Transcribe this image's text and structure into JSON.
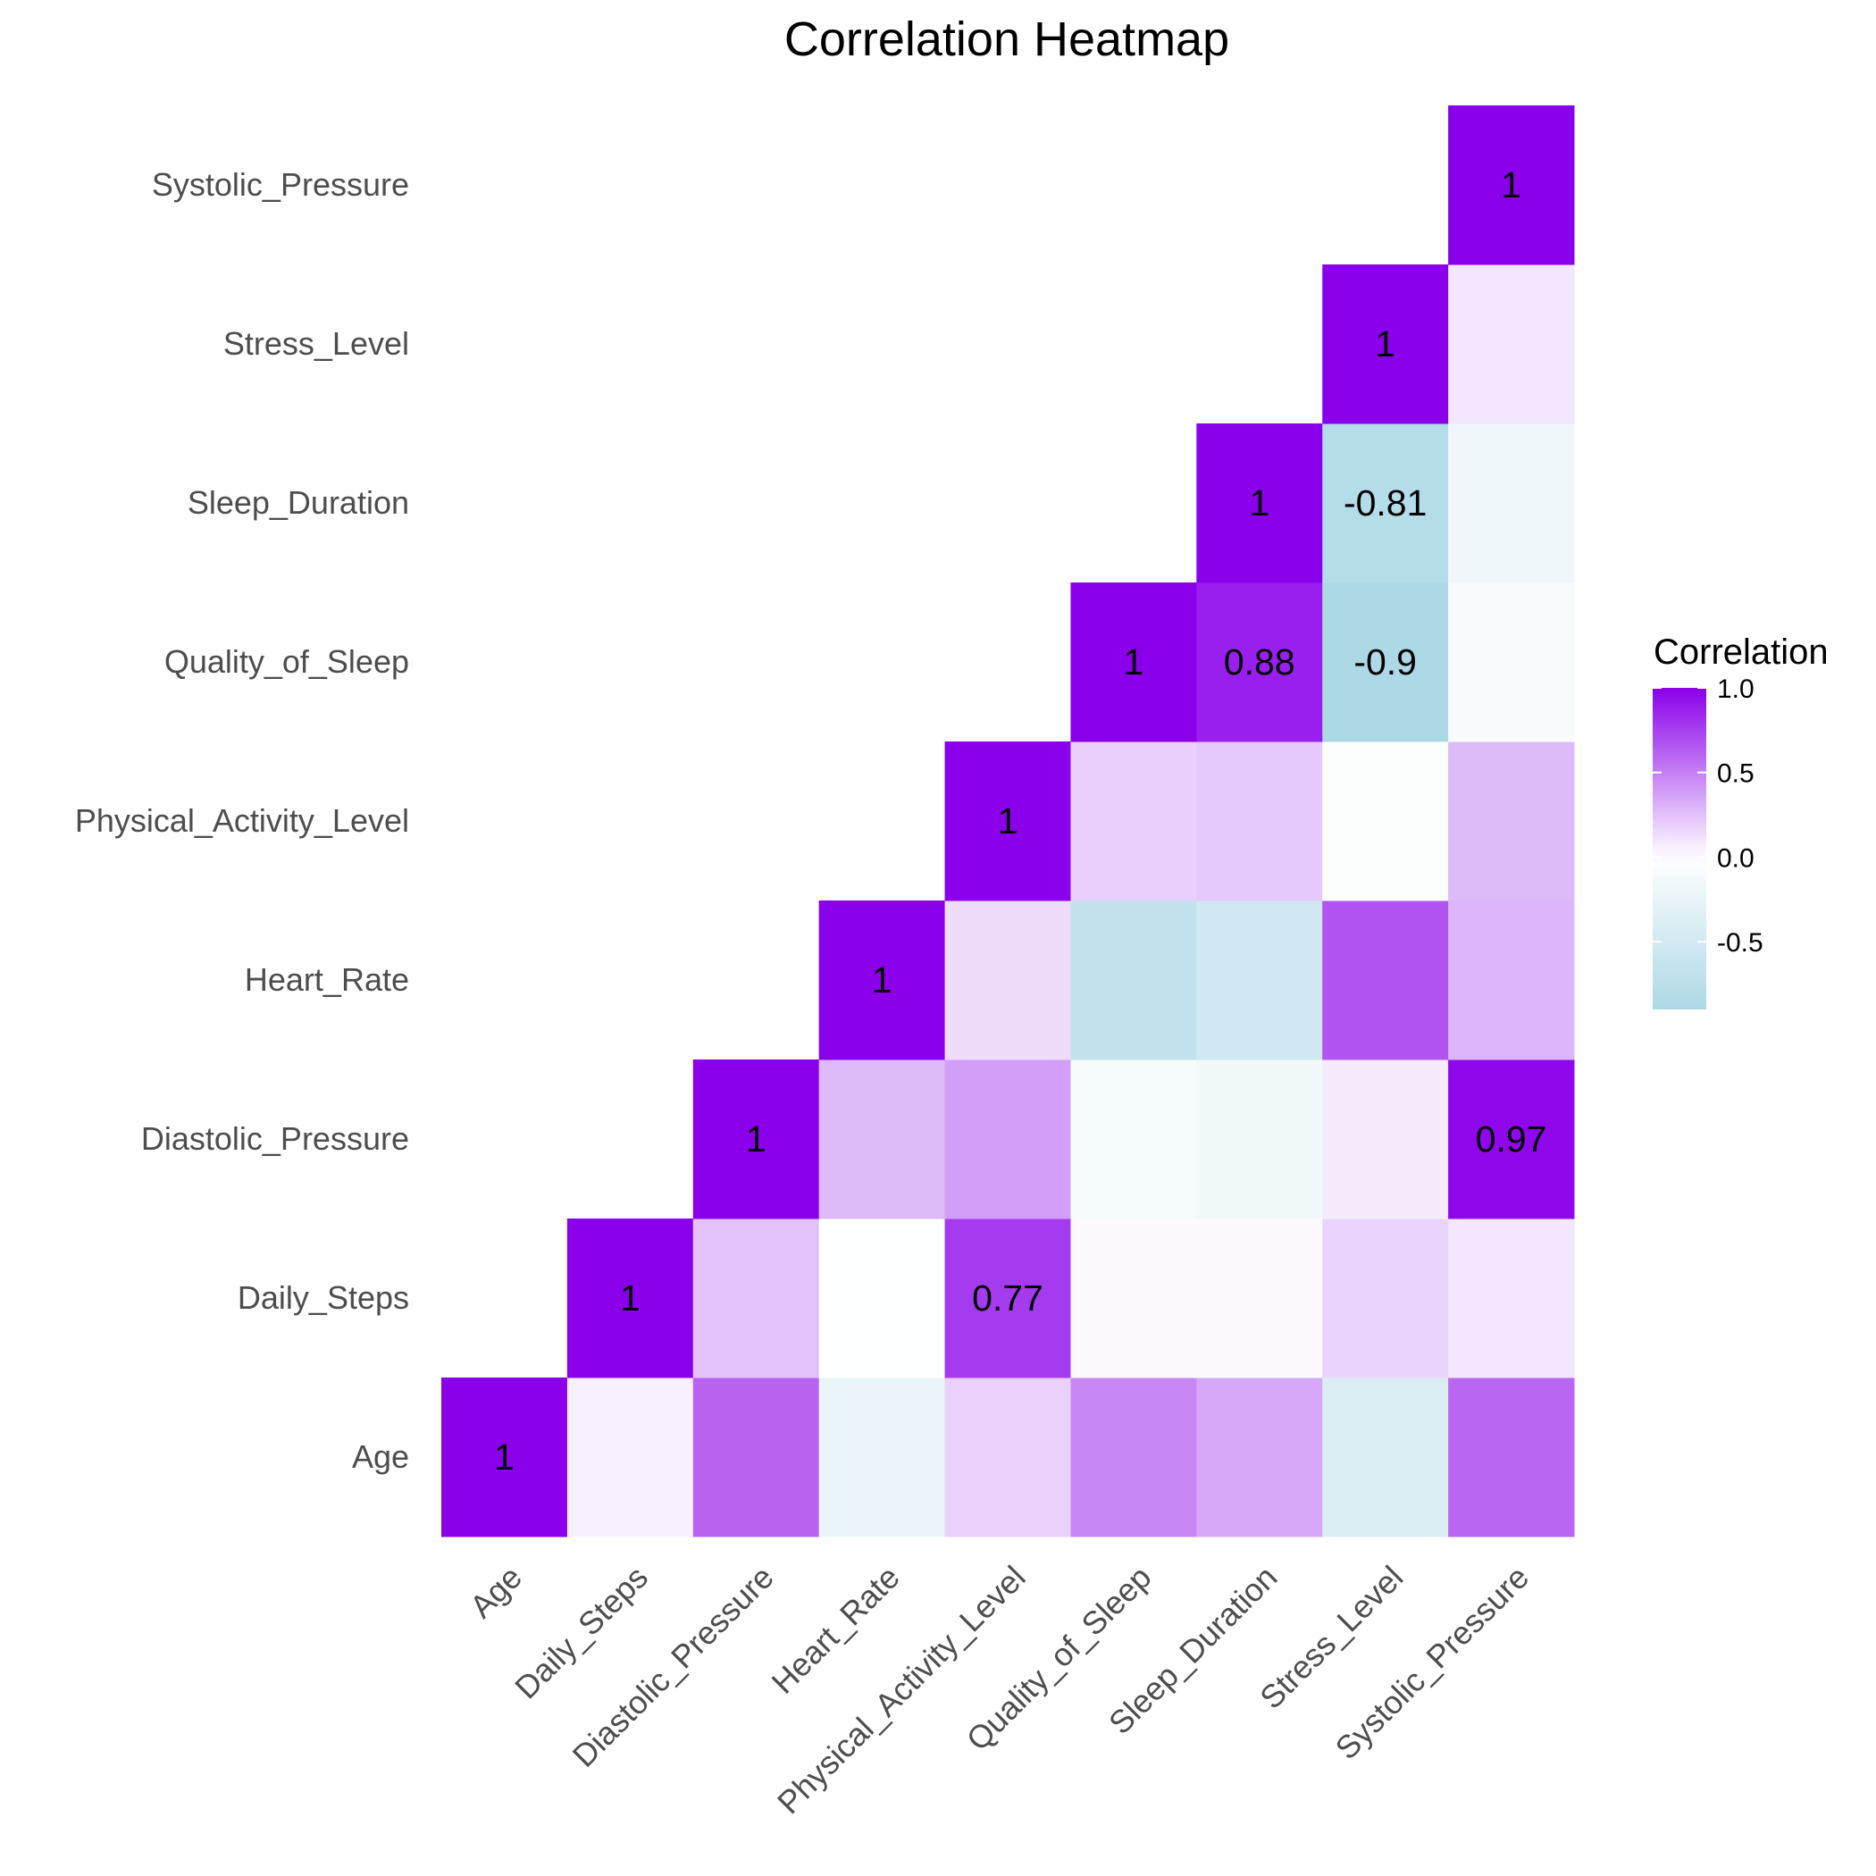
{
  "chart_data": {
    "type": "heatmap",
    "title": "Correlation Heatmap",
    "variables": [
      "Age",
      "Daily_Steps",
      "Diastolic_Pressure",
      "Heart_Rate",
      "Physical_Activity_Level",
      "Quality_of_Sleep",
      "Sleep_Duration",
      "Stress_Level",
      "Systolic_Pressure"
    ],
    "cells": [
      {
        "x": "Age",
        "y": "Age",
        "value": 1,
        "label": "1"
      },
      {
        "x": "Daily_Steps",
        "y": "Age",
        "value": 0.06
      },
      {
        "x": "Diastolic_Pressure",
        "y": "Age",
        "value": 0.61
      },
      {
        "x": "Heart_Rate",
        "y": "Age",
        "value": -0.23
      },
      {
        "x": "Physical_Activity_Level",
        "y": "Age",
        "value": 0.18
      },
      {
        "x": "Quality_of_Sleep",
        "y": "Age",
        "value": 0.47
      },
      {
        "x": "Sleep_Duration",
        "y": "Age",
        "value": 0.34
      },
      {
        "x": "Stress_Level",
        "y": "Age",
        "value": -0.42
      },
      {
        "x": "Systolic_Pressure",
        "y": "Age",
        "value": 0.6
      },
      {
        "x": "Daily_Steps",
        "y": "Daily_Steps",
        "value": 1,
        "label": "1"
      },
      {
        "x": "Diastolic_Pressure",
        "y": "Daily_Steps",
        "value": 0.24
      },
      {
        "x": "Heart_Rate",
        "y": "Daily_Steps",
        "value": -0.01
      },
      {
        "x": "Physical_Activity_Level",
        "y": "Daily_Steps",
        "value": 0.77,
        "label": "0.77"
      },
      {
        "x": "Quality_of_Sleep",
        "y": "Daily_Steps",
        "value": 0.02
      },
      {
        "x": "Sleep_Duration",
        "y": "Daily_Steps",
        "value": 0.02
      },
      {
        "x": "Stress_Level",
        "y": "Daily_Steps",
        "value": 0.17
      },
      {
        "x": "Systolic_Pressure",
        "y": "Daily_Steps",
        "value": 0.1
      },
      {
        "x": "Diastolic_Pressure",
        "y": "Diastolic_Pressure",
        "value": 1,
        "label": "1"
      },
      {
        "x": "Heart_Rate",
        "y": "Diastolic_Pressure",
        "value": 0.27
      },
      {
        "x": "Physical_Activity_Level",
        "y": "Diastolic_Pressure",
        "value": 0.38
      },
      {
        "x": "Quality_of_Sleep",
        "y": "Diastolic_Pressure",
        "value": -0.1
      },
      {
        "x": "Sleep_Duration",
        "y": "Diastolic_Pressure",
        "value": -0.15
      },
      {
        "x": "Stress_Level",
        "y": "Diastolic_Pressure",
        "value": 0.08
      },
      {
        "x": "Systolic_Pressure",
        "y": "Diastolic_Pressure",
        "value": 0.97,
        "label": "0.97"
      },
      {
        "x": "Heart_Rate",
        "y": "Heart_Rate",
        "value": 1,
        "label": "1"
      },
      {
        "x": "Physical_Activity_Level",
        "y": "Heart_Rate",
        "value": 0.14
      },
      {
        "x": "Quality_of_Sleep",
        "y": "Heart_Rate",
        "value": -0.66
      },
      {
        "x": "Sleep_Duration",
        "y": "Heart_Rate",
        "value": -0.52
      },
      {
        "x": "Stress_Level",
        "y": "Heart_Rate",
        "value": 0.67
      },
      {
        "x": "Systolic_Pressure",
        "y": "Heart_Rate",
        "value": 0.29
      },
      {
        "x": "Physical_Activity_Level",
        "y": "Physical_Activity_Level",
        "value": 1,
        "label": "1"
      },
      {
        "x": "Quality_of_Sleep",
        "y": "Physical_Activity_Level",
        "value": 0.19
      },
      {
        "x": "Sleep_Duration",
        "y": "Physical_Activity_Level",
        "value": 0.21
      },
      {
        "x": "Stress_Level",
        "y": "Physical_Activity_Level",
        "value": -0.03
      },
      {
        "x": "Systolic_Pressure",
        "y": "Physical_Activity_Level",
        "value": 0.27
      },
      {
        "x": "Quality_of_Sleep",
        "y": "Quality_of_Sleep",
        "value": 1,
        "label": "1"
      },
      {
        "x": "Sleep_Duration",
        "y": "Quality_of_Sleep",
        "value": 0.88,
        "label": "0.88"
      },
      {
        "x": "Stress_Level",
        "y": "Quality_of_Sleep",
        "value": -0.9,
        "label": "-0.9"
      },
      {
        "x": "Systolic_Pressure",
        "y": "Quality_of_Sleep",
        "value": -0.07
      },
      {
        "x": "Sleep_Duration",
        "y": "Sleep_Duration",
        "value": 1,
        "label": "1"
      },
      {
        "x": "Stress_Level",
        "y": "Sleep_Duration",
        "value": -0.81,
        "label": "-0.81"
      },
      {
        "x": "Systolic_Pressure",
        "y": "Sleep_Duration",
        "value": -0.18
      },
      {
        "x": "Stress_Level",
        "y": "Stress_Level",
        "value": 1,
        "label": "1"
      },
      {
        "x": "Systolic_Pressure",
        "y": "Stress_Level",
        "value": 0.1
      },
      {
        "x": "Systolic_Pressure",
        "y": "Systolic_Pressure",
        "value": 1,
        "label": "1"
      }
    ],
    "color_scale": {
      "low": "#add8e6",
      "mid": "#ffffff",
      "high": "#8a00ea",
      "limits": [
        -0.9,
        1
      ]
    },
    "legend": {
      "title": "Correlation",
      "position": "right",
      "ticks": [
        "1.0",
        "0.5",
        "0.0",
        "-0.5"
      ],
      "tick_values": [
        1.0,
        0.5,
        0.0,
        -0.5
      ]
    },
    "grid": false
  }
}
